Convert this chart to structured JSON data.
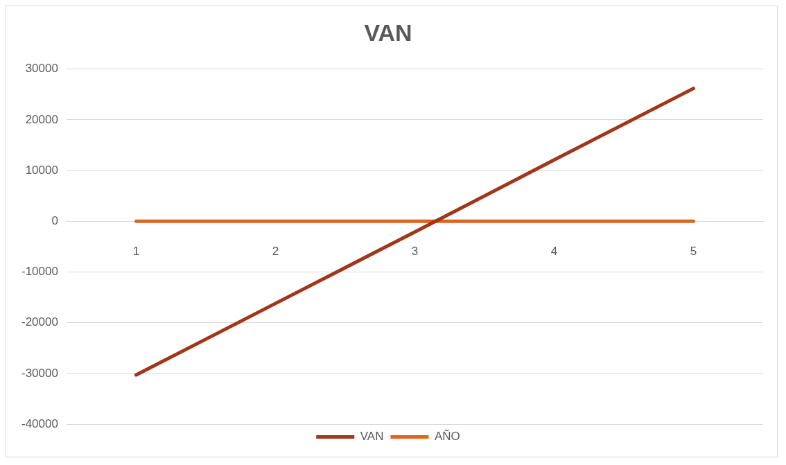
{
  "chart_data": {
    "type": "line",
    "title": "VAN",
    "categories": [
      "1",
      "2",
      "3",
      "4",
      "5"
    ],
    "series": [
      {
        "name": "VAN",
        "color": "#a0361a",
        "values": [
          -30300,
          -16200,
          -2100,
          12100,
          26200
        ]
      },
      {
        "name": "AÑO",
        "color": "#e2621f",
        "values": [
          0,
          0,
          0,
          0,
          0
        ]
      }
    ],
    "ylim": [
      -40000,
      30000
    ],
    "yticks": [
      -40000,
      -30000,
      -20000,
      -10000,
      0,
      10000,
      20000,
      30000
    ],
    "grid": "y",
    "legend": "bottom",
    "marker": "none",
    "line_style": "solid"
  }
}
